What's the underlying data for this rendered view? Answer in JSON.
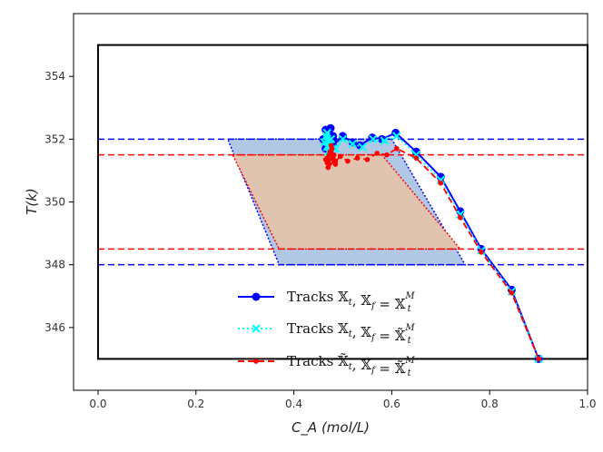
{
  "chart_data": {
    "type": "line",
    "title": "",
    "xlabel": "C_A (mol/L)",
    "ylabel": "T(k)",
    "xlim": [
      -0.05,
      1.0
    ],
    "ylim": [
      344,
      356
    ],
    "xticks": [
      0.0,
      0.2,
      0.4,
      0.6,
      0.8,
      1.0
    ],
    "xtick_labels": [
      "0.0",
      "0.2",
      "0.4",
      "0.6",
      "0.8",
      "1.0"
    ],
    "yticks": [
      346,
      348,
      350,
      352,
      354
    ],
    "ytick_labels": [
      "346",
      "348",
      "350",
      "352",
      "354"
    ],
    "grid": false,
    "legend_position": "lower-center",
    "colors": {
      "blue": "#0000ff",
      "cyan": "#00ffff",
      "red": "#ff0000",
      "blue_fill": "#b0c8e4",
      "red_fill": "#e0c4b0"
    },
    "state_box": {
      "x": [
        0.0,
        1.0
      ],
      "y": [
        345,
        355
      ]
    },
    "constraint_lines": [
      {
        "name": "blue-upper",
        "y": 352.0,
        "color": "#0000ff"
      },
      {
        "name": "blue-lower",
        "y": 348.0,
        "color": "#0000ff"
      },
      {
        "name": "red-upper",
        "y": 351.5,
        "color": "#ff0000"
      },
      {
        "name": "red-lower",
        "y": 348.5,
        "color": "#ff0000"
      }
    ],
    "regions": [
      {
        "name": "blue-region",
        "color": "#b0c8e4",
        "edge": "#0000ff",
        "polygon": [
          [
            0.265,
            352.0
          ],
          [
            0.6,
            352.0
          ],
          [
            0.75,
            348.0
          ],
          [
            0.37,
            348.0
          ]
        ]
      },
      {
        "name": "red-region",
        "color": "#e0c4b0",
        "edge": "#ff0000",
        "polygon": [
          [
            0.275,
            351.5
          ],
          [
            0.58,
            351.5
          ],
          [
            0.74,
            348.5
          ],
          [
            0.37,
            348.5
          ]
        ]
      }
    ],
    "series": [
      {
        "name": "series-blue",
        "legend": "Tracks",
        "color": "#0000ff",
        "style": "solid",
        "marker": "circle",
        "x": [
          0.9,
          0.845,
          0.783,
          0.74,
          0.7,
          0.65,
          0.608,
          0.58,
          0.56,
          0.535,
          0.52,
          0.5,
          0.48,
          0.465,
          0.46,
          0.465,
          0.475,
          0.48,
          0.475,
          0.468,
          0.472,
          0.48,
          0.476
        ],
        "y": [
          345.0,
          347.2,
          348.5,
          349.7,
          350.8,
          351.6,
          352.2,
          352.0,
          352.05,
          351.8,
          351.9,
          352.1,
          351.8,
          351.7,
          352.0,
          352.3,
          352.35,
          352.1,
          351.9,
          352.2,
          351.8,
          352.0,
          351.75
        ]
      },
      {
        "name": "series-cyan",
        "legend": "Tracks",
        "color": "#00ffff",
        "style": "dotted",
        "marker": "x",
        "x": [
          0.9,
          0.845,
          0.783,
          0.74,
          0.7,
          0.65,
          0.61,
          0.585,
          0.562,
          0.54,
          0.52,
          0.5,
          0.485,
          0.47,
          0.462,
          0.468,
          0.476,
          0.47,
          0.466,
          0.474,
          0.48,
          0.472,
          0.468,
          0.475
        ],
        "y": [
          345.0,
          347.15,
          348.45,
          349.6,
          350.7,
          351.5,
          352.1,
          351.95,
          352.0,
          351.75,
          351.85,
          352.0,
          351.7,
          351.6,
          351.9,
          352.2,
          352.0,
          351.8,
          352.1,
          351.85,
          351.7,
          351.95,
          351.75,
          351.6
        ]
      },
      {
        "name": "series-red",
        "legend": "Tracks",
        "color": "#ff0000",
        "style": "dashed",
        "marker": "dot",
        "x": [
          0.9,
          0.845,
          0.783,
          0.74,
          0.7,
          0.65,
          0.61,
          0.59,
          0.57,
          0.55,
          0.53,
          0.51,
          0.495,
          0.485,
          0.478,
          0.472,
          0.468,
          0.475,
          0.482,
          0.47,
          0.465,
          0.478,
          0.485,
          0.472,
          0.468,
          0.48,
          0.476,
          0.47,
          0.482,
          0.474
        ],
        "y": [
          345.0,
          347.1,
          348.4,
          349.5,
          350.6,
          351.4,
          351.7,
          351.5,
          351.55,
          351.35,
          351.4,
          351.3,
          351.45,
          351.3,
          351.5,
          351.2,
          351.4,
          351.6,
          351.3,
          351.1,
          351.35,
          351.7,
          351.2,
          351.5,
          351.25,
          351.4,
          351.8,
          351.3,
          351.5,
          351.6
        ]
      }
    ],
    "legend_entries": [
      {
        "series": "series-blue",
        "label": "Tracks",
        "X1": "𝕏",
        "X1_sub": "t",
        "sep": ",",
        "X2": "𝕏",
        "X2_sub": "f",
        "eq": "=",
        "X3": "𝕏",
        "X3_sup": "M",
        "X3_sub": "t"
      },
      {
        "series": "series-cyan",
        "label": "Tracks",
        "X1": "𝕏",
        "X1_sub": "t",
        "sep": ",",
        "X2": "𝕏",
        "X2_sub": "f",
        "eq": "=",
        "X3": "𝕏̃",
        "X3_sup": "M",
        "X3_sub": "t"
      },
      {
        "series": "series-red",
        "label": "Tracks",
        "X1": "𝕏̃",
        "X1_sub": "t",
        "sep": ",",
        "X2": "𝕏",
        "X2_sub": "f",
        "eq": "=",
        "X3": "𝕏̃",
        "X3_sup": "M",
        "X3_sub": "t"
      }
    ]
  }
}
